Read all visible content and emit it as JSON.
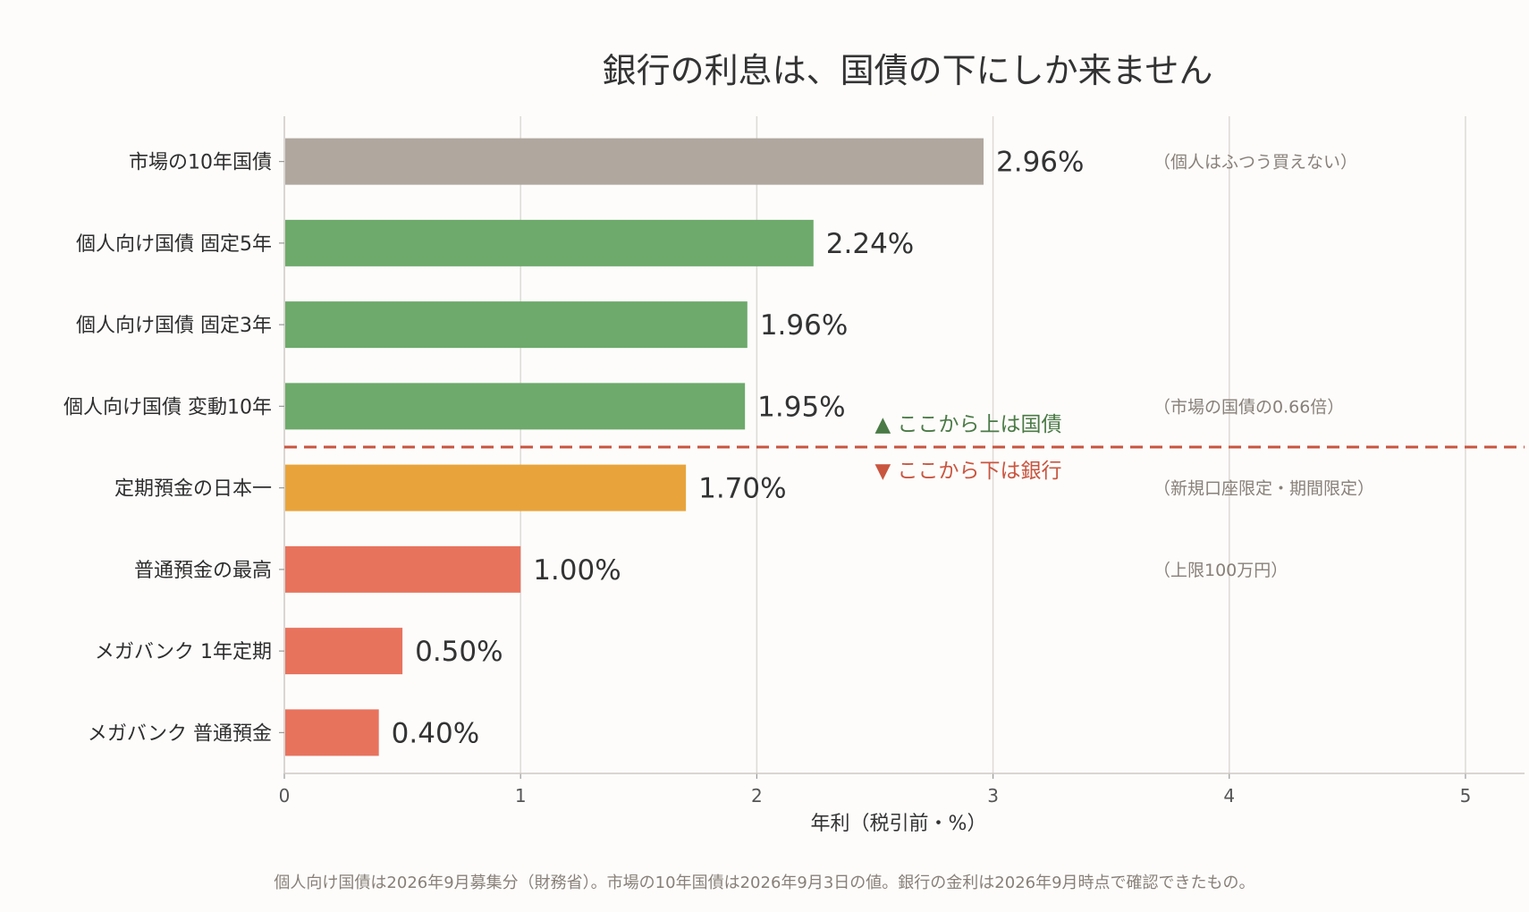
{
  "chart_data": {
    "type": "bar",
    "orientation": "horizontal",
    "title": "銀行の利息は、国債の下にしか来ません",
    "xlabel": "年利（税引前・%）",
    "xlim": [
      0,
      5.25
    ],
    "xticks": [
      0,
      1,
      2,
      3,
      4,
      5
    ],
    "grid": "vertical",
    "categories": [
      "市場の10年国債",
      "個人向け国債 固定5年",
      "個人向け国債 固定3年",
      "個人向け国債 変動10年",
      "定期預金の日本一",
      "普通預金の最高",
      "メガバンク 1年定期",
      "メガバンク 普通預金"
    ],
    "values": [
      2.96,
      2.24,
      1.96,
      1.95,
      1.7,
      1.0,
      0.5,
      0.4
    ],
    "value_labels": [
      "2.96%",
      "2.24%",
      "1.96%",
      "1.95%",
      "1.70%",
      "1.00%",
      "0.50%",
      "0.40%"
    ],
    "bar_colors": [
      "#b0a79f",
      "#6daa6b",
      "#6daa6b",
      "#6daa6b",
      "#e8a43b",
      "#e8735d",
      "#e8735d",
      "#e8735d"
    ],
    "notes": [
      {
        "category_index": 0,
        "text": "（個人はふつう買えない）"
      },
      {
        "category_index": 3,
        "text": "（市場の国債の0.66倍）"
      },
      {
        "category_index": 4,
        "text": "（新規口座限定・期間限定）"
      },
      {
        "category_index": 5,
        "text": "（上限100万円）"
      }
    ],
    "separator": {
      "after_category_index": 3,
      "line_color": "#c9553f",
      "above_label": "▲ ここから上は国債",
      "above_color": "#4a7a45",
      "below_label": "▼ ここから下は銀行",
      "below_color": "#c9553f",
      "label_x": 2.5
    }
  },
  "footer": "個人向け国債は2026年9月募集分（財務省）。市場の10年国債は2026年9月3日の値。銀行の金利は2026年9月時点で確認できたもの。"
}
